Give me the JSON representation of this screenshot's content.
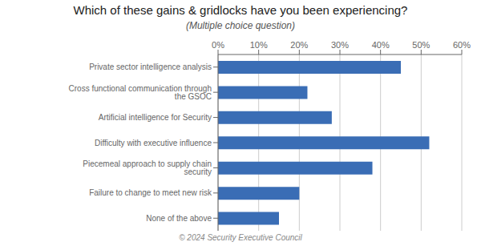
{
  "chart_data": {
    "type": "bar",
    "orientation": "horizontal",
    "title": "Which of these gains & gridlocks have you been experiencing?",
    "subtitle": "(Multiple choice question)",
    "annotations": [
      "© 2024 Security Executive Council"
    ],
    "categories": [
      "None of the above",
      "Failure to change to meet new risk",
      "Piecemeal approach to supply chain security",
      "Difficulty with executive influence",
      "Artificial intelligence for Security",
      "Cross functional communication through the GSOC",
      "Private sector intelligence analysis"
    ],
    "values": [
      15,
      20,
      38,
      52,
      28,
      22,
      45
    ],
    "color": "#3A6DB5",
    "xlim": [
      0,
      60
    ],
    "xticks": [
      {
        "value": 0,
        "label": "0%"
      },
      {
        "value": 10,
        "label": "10%"
      },
      {
        "value": 20,
        "label": "20%"
      },
      {
        "value": 30,
        "label": "30%"
      },
      {
        "value": 40,
        "label": "40%"
      },
      {
        "value": 50,
        "label": "50%"
      },
      {
        "value": 60,
        "label": "60%"
      }
    ],
    "grid": true
  }
}
